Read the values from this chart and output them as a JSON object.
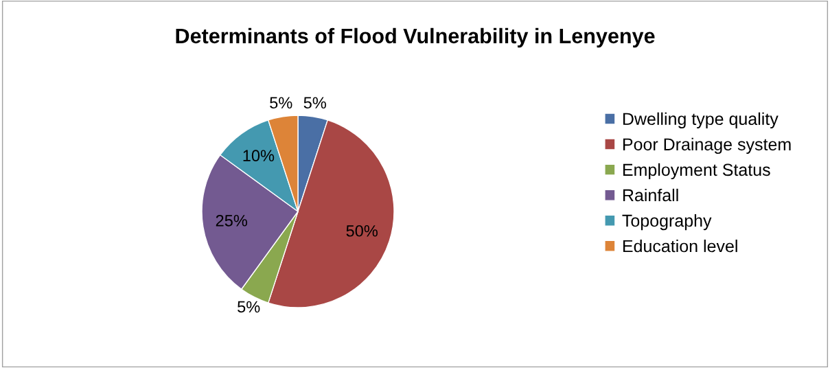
{
  "chart_data": {
    "type": "pie",
    "title": "Determinants of Flood Vulnerability in Lenyenye",
    "categories": [
      "Dwelling type quality",
      "Poor Drainage system",
      "Employment Status",
      "Rainfall",
      "Topography",
      "Education level"
    ],
    "values": [
      5,
      50,
      5,
      25,
      10,
      5
    ],
    "colors": [
      "#4a6fa5",
      "#a94745",
      "#8aa84f",
      "#735a91",
      "#4499b0",
      "#dd8438"
    ],
    "value_labels": [
      "5%",
      "50%",
      "5%",
      "25%",
      "10%",
      "5%"
    ],
    "legend": "right"
  }
}
